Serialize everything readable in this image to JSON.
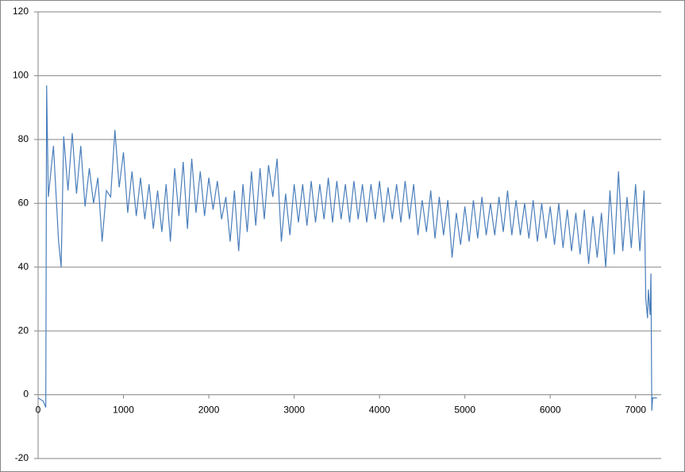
{
  "chart_data": {
    "type": "line",
    "x": [
      0,
      60,
      90,
      100,
      120,
      180,
      240,
      270,
      300,
      350,
      400,
      450,
      500,
      550,
      600,
      650,
      700,
      750,
      800,
      850,
      900,
      950,
      1000,
      1050,
      1100,
      1150,
      1200,
      1250,
      1300,
      1350,
      1400,
      1450,
      1500,
      1550,
      1600,
      1650,
      1700,
      1750,
      1800,
      1850,
      1900,
      1950,
      2000,
      2050,
      2100,
      2150,
      2200,
      2250,
      2300,
      2350,
      2400,
      2450,
      2500,
      2550,
      2600,
      2650,
      2700,
      2750,
      2800,
      2850,
      2900,
      2950,
      3000,
      3050,
      3100,
      3150,
      3200,
      3250,
      3300,
      3350,
      3400,
      3450,
      3500,
      3550,
      3600,
      3650,
      3700,
      3750,
      3800,
      3850,
      3900,
      3950,
      4000,
      4050,
      4100,
      4150,
      4200,
      4250,
      4300,
      4350,
      4400,
      4450,
      4500,
      4550,
      4600,
      4650,
      4700,
      4750,
      4800,
      4850,
      4900,
      4950,
      5000,
      5050,
      5100,
      5150,
      5200,
      5250,
      5300,
      5350,
      5400,
      5450,
      5500,
      5550,
      5600,
      5650,
      5700,
      5750,
      5800,
      5850,
      5900,
      5950,
      6000,
      6050,
      6100,
      6150,
      6200,
      6250,
      6300,
      6350,
      6400,
      6450,
      6500,
      6550,
      6600,
      6650,
      6700,
      6750,
      6800,
      6850,
      6900,
      6950,
      7000,
      7050,
      7100,
      7120,
      7140,
      7150,
      7170,
      7180,
      7190,
      7200,
      7250
    ],
    "series": [
      {
        "color": "#4a7ebb",
        "values": [
          -1,
          -2,
          -4,
          97,
          62,
          78,
          48,
          40,
          81,
          64,
          82,
          63,
          78,
          59,
          71,
          60,
          68,
          48,
          64,
          62,
          83,
          65,
          76,
          57,
          70,
          56,
          68,
          55,
          66,
          52,
          64,
          51,
          66,
          48,
          71,
          56,
          73,
          52,
          74,
          57,
          70,
          56,
          68,
          58,
          67,
          55,
          62,
          48,
          64,
          45,
          66,
          51,
          70,
          53,
          71,
          55,
          72,
          62,
          74,
          48,
          63,
          50,
          66,
          54,
          66,
          53,
          67,
          54,
          66,
          55,
          68,
          54,
          67,
          55,
          66,
          54,
          67,
          55,
          66,
          54,
          66,
          55,
          67,
          54,
          65,
          55,
          66,
          54,
          67,
          55,
          66,
          50,
          61,
          51,
          64,
          49,
          62,
          50,
          61,
          43,
          57,
          47,
          59,
          48,
          61,
          49,
          62,
          50,
          60,
          50,
          62,
          51,
          64,
          50,
          61,
          50,
          60,
          49,
          61,
          48,
          60,
          49,
          59,
          47,
          60,
          46,
          58,
          45,
          57,
          44,
          58,
          41,
          56,
          43,
          57,
          40,
          64,
          44,
          70,
          45,
          62,
          46,
          66,
          45,
          64,
          30,
          24,
          33,
          25,
          38,
          -5,
          -1,
          -1
        ]
      }
    ],
    "xlim": [
      0,
      7300
    ],
    "ylim": [
      -20,
      120
    ],
    "xticks": [
      0,
      1000,
      2000,
      3000,
      4000,
      5000,
      6000,
      7000
    ],
    "yticks": [
      -20,
      0,
      20,
      40,
      60,
      80,
      100,
      120
    ],
    "grid": true
  }
}
